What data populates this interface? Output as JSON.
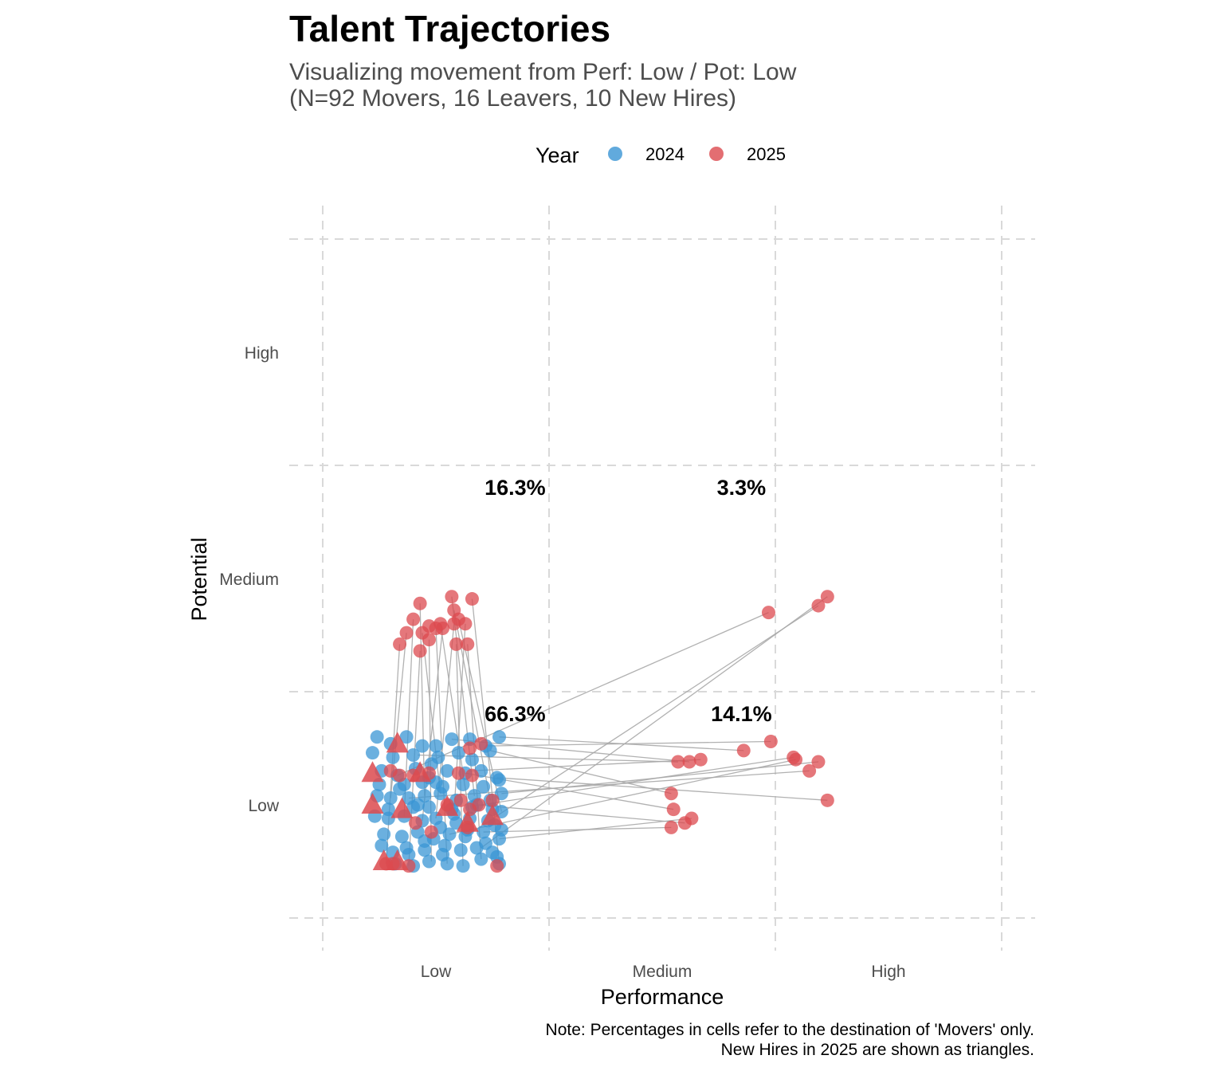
{
  "title": "Talent Trajectories",
  "subtitle_line1": "Visualizing movement from Perf: Low / Pot: Low",
  "subtitle_line2": "(N=92 Movers, 16 Leavers, 10 New Hires)",
  "caption_line1": "Note: Percentages in cells refer to the destination of 'Movers' only.",
  "caption_line2": "New Hires in 2025 are shown as triangles.",
  "colors": {
    "y2024": "#3a95d4",
    "y2025": "#dc4a4f",
    "segment": "#a8a8a8",
    "grid": "#d9d9d9"
  },
  "chart_data": {
    "type": "scatter",
    "xlabel": "Performance",
    "ylabel": "Potential",
    "x_categories": [
      "Low",
      "Medium",
      "High"
    ],
    "y_categories": [
      "Low",
      "Medium",
      "High"
    ],
    "xlim": [
      0.35,
      3.5
    ],
    "ylim": [
      0.5,
      3.5
    ],
    "legend": {
      "title": "Year",
      "position": "top",
      "entries": [
        "2024",
        "2025"
      ]
    },
    "grid": true,
    "cell_labels": [
      {
        "x": 1,
        "y": 1,
        "label": "66.3%"
      },
      {
        "x": 2,
        "y": 1,
        "label": "14.1%"
      },
      {
        "x": 1,
        "y": 2,
        "label": "16.3%"
      },
      {
        "x": 2,
        "y": 2,
        "label": "3.3%"
      }
    ],
    "points_2024": [
      [
        0.74,
        1.3
      ],
      [
        0.8,
        1.27
      ],
      [
        0.87,
        1.3
      ],
      [
        0.94,
        1.26
      ],
      [
        1.0,
        1.26
      ],
      [
        1.07,
        1.29
      ],
      [
        1.15,
        1.29
      ],
      [
        1.22,
        1.26
      ],
      [
        1.28,
        1.3
      ],
      [
        0.72,
        1.23
      ],
      [
        0.81,
        1.21
      ],
      [
        0.9,
        1.22
      ],
      [
        1.01,
        1.21
      ],
      [
        1.1,
        1.23
      ],
      [
        1.16,
        1.2
      ],
      [
        1.24,
        1.24
      ],
      [
        0.76,
        1.15
      ],
      [
        0.83,
        1.13
      ],
      [
        0.91,
        1.16
      ],
      [
        0.97,
        1.12
      ],
      [
        1.05,
        1.15
      ],
      [
        1.13,
        1.14
      ],
      [
        1.2,
        1.15
      ],
      [
        1.27,
        1.12
      ],
      [
        0.74,
        1.04
      ],
      [
        0.8,
        1.03
      ],
      [
        0.88,
        1.03
      ],
      [
        0.95,
        1.04
      ],
      [
        1.02,
        1.05
      ],
      [
        1.09,
        1.02
      ],
      [
        1.17,
        1.04
      ],
      [
        1.24,
        1.02
      ],
      [
        1.29,
        1.05
      ],
      [
        0.73,
        0.95
      ],
      [
        0.79,
        0.94
      ],
      [
        0.86,
        0.95
      ],
      [
        0.94,
        0.93
      ],
      [
        1.0,
        0.94
      ],
      [
        1.08,
        0.96
      ],
      [
        1.15,
        0.94
      ],
      [
        1.23,
        0.93
      ],
      [
        1.29,
        0.97
      ],
      [
        0.77,
        0.87
      ],
      [
        0.85,
        0.86
      ],
      [
        0.92,
        0.88
      ],
      [
        0.99,
        0.85
      ],
      [
        1.06,
        0.87
      ],
      [
        1.13,
        0.86
      ],
      [
        1.21,
        0.88
      ],
      [
        1.28,
        0.85
      ],
      [
        0.76,
        0.82
      ],
      [
        0.81,
        0.79
      ],
      [
        0.88,
        0.78
      ],
      [
        0.95,
        0.8
      ],
      [
        1.03,
        0.78
      ],
      [
        1.11,
        0.8
      ],
      [
        1.18,
        0.81
      ],
      [
        1.25,
        0.79
      ],
      [
        0.82,
        0.74
      ],
      [
        0.9,
        0.73
      ],
      [
        0.97,
        0.75
      ],
      [
        1.05,
        0.74
      ],
      [
        1.12,
        0.73
      ],
      [
        1.2,
        0.76
      ],
      [
        1.28,
        0.74
      ],
      [
        0.75,
        1.09
      ],
      [
        0.86,
        1.09
      ],
      [
        0.94,
        1.1
      ],
      [
        1.03,
        1.08
      ],
      [
        1.12,
        1.09
      ],
      [
        1.21,
        1.08
      ],
      [
        1.28,
        1.11
      ],
      [
        0.79,
        0.98
      ],
      [
        0.9,
        0.99
      ],
      [
        0.97,
        0.99
      ],
      [
        1.07,
        0.98
      ],
      [
        1.16,
        0.99
      ],
      [
        1.25,
        0.98
      ],
      [
        0.84,
        1.07
      ],
      [
        0.92,
        1.0
      ],
      [
        1.0,
        1.1
      ],
      [
        1.09,
        0.92
      ],
      [
        1.18,
        1.0
      ],
      [
        1.26,
        0.91
      ],
      [
        0.87,
        0.81
      ],
      [
        0.95,
        0.84
      ],
      [
        1.04,
        0.82
      ],
      [
        1.14,
        0.89
      ],
      [
        1.22,
        0.83
      ],
      [
        1.29,
        0.89
      ],
      [
        0.98,
        1.18
      ],
      [
        1.02,
        0.9
      ],
      [
        1.27,
        0.77
      ]
    ],
    "points_2025": [
      [
        1.2,
        1.27
      ],
      [
        1.15,
        1.25
      ],
      [
        0.97,
        1.14
      ],
      [
        1.1,
        1.14
      ],
      [
        1.16,
        1.13
      ],
      [
        0.9,
        1.13
      ],
      [
        0.84,
        1.13
      ],
      [
        1.27,
        0.73
      ],
      [
        0.78,
        0.74
      ],
      [
        0.81,
        0.74
      ],
      [
        0.88,
        0.73
      ],
      [
        0.98,
        0.88
      ],
      [
        1.05,
        1.0
      ],
      [
        1.11,
        1.02
      ],
      [
        0.8,
        1.15
      ],
      [
        1.14,
        0.9
      ],
      [
        0.91,
        0.92
      ],
      [
        1.15,
        0.98
      ],
      [
        1.19,
        1.0
      ],
      [
        1.25,
        1.02
      ],
      [
        0.84,
        1.71
      ],
      [
        0.97,
        1.73
      ],
      [
        0.97,
        1.79
      ],
      [
        1.0,
        1.78
      ],
      [
        1.09,
        1.71
      ],
      [
        1.14,
        1.71
      ],
      [
        1.08,
        1.8
      ],
      [
        1.13,
        1.8
      ],
      [
        1.03,
        1.78
      ],
      [
        0.9,
        1.82
      ],
      [
        0.93,
        1.68
      ],
      [
        0.87,
        1.76
      ],
      [
        0.94,
        1.76
      ],
      [
        1.07,
        1.92
      ],
      [
        1.16,
        1.91
      ],
      [
        0.93,
        1.89
      ],
      [
        1.08,
        1.86
      ],
      [
        1.1,
        1.82
      ],
      [
        1.02,
        1.8
      ],
      [
        2.73,
        1.92
      ],
      [
        2.69,
        1.88
      ],
      [
        2.47,
        1.85
      ],
      [
        2.36,
        1.24
      ],
      [
        2.48,
        1.28
      ],
      [
        2.58,
        1.21
      ],
      [
        2.07,
        1.19
      ],
      [
        2.12,
        1.19
      ],
      [
        2.17,
        1.2
      ],
      [
        2.59,
        1.2
      ],
      [
        2.69,
        1.19
      ],
      [
        2.65,
        1.15
      ],
      [
        2.04,
        1.05
      ],
      [
        2.05,
        0.98
      ],
      [
        2.04,
        0.9
      ],
      [
        2.13,
        0.94
      ],
      [
        2.1,
        0.92
      ],
      [
        2.73,
        1.02
      ]
    ],
    "new_hires_2025": [
      [
        0.72,
        1.14
      ],
      [
        0.83,
        1.27
      ],
      [
        0.93,
        1.14
      ],
      [
        0.72,
        1.0
      ],
      [
        0.85,
        0.98
      ],
      [
        1.05,
        0.99
      ],
      [
        1.25,
        0.95
      ],
      [
        1.14,
        0.92
      ],
      [
        0.77,
        0.75
      ],
      [
        0.83,
        0.75
      ]
    ],
    "trajectories": [
      [
        [
          0.78,
          0.74
        ],
        [
          0.84,
          1.71
        ]
      ],
      [
        [
          0.88,
          0.73
        ],
        [
          0.93,
          1.68
        ]
      ],
      [
        [
          0.98,
          0.75
        ],
        [
          0.97,
          1.73
        ]
      ],
      [
        [
          1.05,
          0.74
        ],
        [
          1.0,
          1.78
        ]
      ],
      [
        [
          1.12,
          0.73
        ],
        [
          1.09,
          1.71
        ]
      ],
      [
        [
          1.2,
          0.76
        ],
        [
          1.14,
          1.71
        ]
      ],
      [
        [
          1.28,
          0.74
        ],
        [
          1.16,
          1.91
        ]
      ],
      [
        [
          1.0,
          0.94
        ],
        [
          1.08,
          1.8
        ]
      ],
      [
        [
          1.08,
          0.96
        ],
        [
          1.13,
          1.8
        ]
      ],
      [
        [
          0.94,
          0.93
        ],
        [
          1.03,
          1.78
        ]
      ],
      [
        [
          0.86,
          0.95
        ],
        [
          0.9,
          1.82
        ]
      ],
      [
        [
          0.8,
          1.03
        ],
        [
          0.87,
          1.76
        ]
      ],
      [
        [
          1.02,
          1.05
        ],
        [
          0.94,
          1.76
        ]
      ],
      [
        [
          1.17,
          1.04
        ],
        [
          1.07,
          1.92
        ]
      ],
      [
        [
          1.24,
          1.02
        ],
        [
          1.08,
          1.86
        ]
      ],
      [
        [
          0.95,
          1.04
        ],
        [
          0.93,
          1.89
        ]
      ],
      [
        [
          1.29,
          0.97
        ],
        [
          1.1,
          1.82
        ]
      ],
      [
        [
          1.15,
          0.94
        ],
        [
          1.02,
          1.8
        ]
      ],
      [
        [
          0.83,
          1.13
        ],
        [
          2.47,
          1.85
        ]
      ],
      [
        [
          1.2,
          0.81
        ],
        [
          2.73,
          1.92
        ]
      ],
      [
        [
          1.13,
          0.86
        ],
        [
          2.69,
          1.88
        ]
      ],
      [
        [
          0.92,
          1.22
        ],
        [
          2.07,
          1.19
        ]
      ],
      [
        [
          1.07,
          1.29
        ],
        [
          2.12,
          1.19
        ]
      ],
      [
        [
          1.15,
          1.15
        ],
        [
          2.17,
          1.2
        ]
      ],
      [
        [
          1.28,
          1.3
        ],
        [
          2.36,
          1.24
        ]
      ],
      [
        [
          1.22,
          1.26
        ],
        [
          2.48,
          1.28
        ]
      ],
      [
        [
          1.2,
          1.0
        ],
        [
          2.58,
          1.21
        ]
      ],
      [
        [
          1.06,
          0.87
        ],
        [
          2.59,
          1.2
        ]
      ],
      [
        [
          1.29,
          1.05
        ],
        [
          2.69,
          1.19
        ]
      ],
      [
        [
          0.88,
          1.03
        ],
        [
          2.65,
          1.15
        ]
      ],
      [
        [
          1.24,
          1.24
        ],
        [
          2.04,
          1.05
        ]
      ],
      [
        [
          1.13,
          1.14
        ],
        [
          2.05,
          0.98
        ]
      ],
      [
        [
          1.21,
          0.88
        ],
        [
          2.04,
          0.9
        ]
      ],
      [
        [
          1.28,
          0.85
        ],
        [
          2.13,
          0.94
        ]
      ],
      [
        [
          1.18,
          1.0
        ],
        [
          2.1,
          0.92
        ]
      ],
      [
        [
          1.27,
          1.12
        ],
        [
          2.73,
          1.02
        ]
      ]
    ],
    "y_tick_labels": [
      "Low",
      "Medium",
      "High"
    ],
    "x_tick_labels": [
      "Low",
      "Medium",
      "High"
    ]
  }
}
